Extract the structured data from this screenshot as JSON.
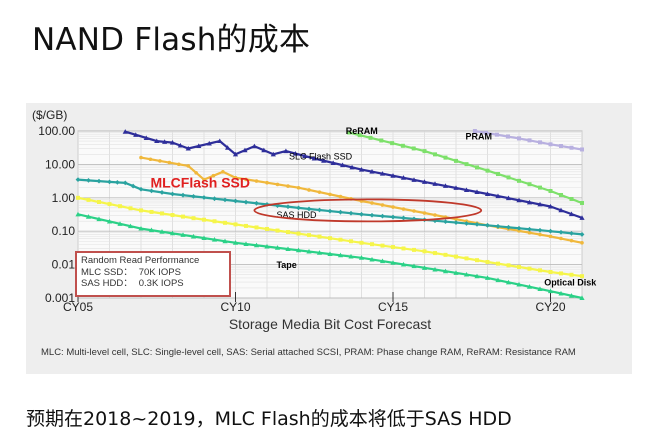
{
  "slide": {
    "title": "NAND Flash的成本",
    "caption": "预期在2018~2019，MLC Flash的成本将低于SAS HDD"
  },
  "figure": {
    "footnote": "MLC: Multi-level cell, SLC: Single-level cell, SAS: Serial attached SCSI, PRAM: Phase change RAM, ReRAM: Resistance RAM",
    "performance_box": {
      "heading": "Random Read Performance",
      "rows": [
        {
          "label": "MLC SSD：",
          "value": "70K IOPS"
        },
        {
          "label": "SAS HDD：",
          "value": "0.3K IOPS"
        }
      ]
    },
    "highlight_color": "#c0392b"
  },
  "chart_data": {
    "type": "line",
    "title": "Storage Media Bit Cost Forecast",
    "ylabel": "($/GB)",
    "xlabel": "",
    "yscale": "log",
    "ylim": [
      0.001,
      100
    ],
    "xlim": [
      2005,
      2021
    ],
    "grid": true,
    "yticks": [
      {
        "value": 100,
        "label": "100.00"
      },
      {
        "value": 10,
        "label": "10.00"
      },
      {
        "value": 1,
        "label": "1.00"
      },
      {
        "value": 0.1,
        "label": "0.10"
      },
      {
        "value": 0.01,
        "label": "0.01"
      },
      {
        "value": 0.001,
        "label": "0.001"
      }
    ],
    "xticks": [
      {
        "value": 2005,
        "label": "CY05"
      },
      {
        "value": 2010,
        "label": "CY10"
      },
      {
        "value": 2015,
        "label": "CY15"
      },
      {
        "value": 2020,
        "label": "CY20"
      }
    ],
    "series": [
      {
        "name": "ReRAM",
        "color": "#7de06a",
        "marker": "square",
        "label_color": "#000000",
        "points": [
          [
            2013.6,
            90
          ],
          [
            2016,
            25
          ],
          [
            2018,
            6.5
          ],
          [
            2020,
            1.6
          ],
          [
            2021,
            0.7
          ]
        ]
      },
      {
        "name": "PRAM",
        "color": "#b8b0e0",
        "marker": "square",
        "label_color": "#000000",
        "points": [
          [
            2017.6,
            100
          ],
          [
            2019,
            60
          ],
          [
            2020,
            40
          ],
          [
            2021,
            28
          ]
        ]
      },
      {
        "name": "SLC Flash SSD",
        "color": "#2e2e9a",
        "marker": "triangle",
        "label_color": "#000000",
        "points": [
          [
            2006.5,
            95
          ],
          [
            2007.5,
            50
          ],
          [
            2008,
            45
          ],
          [
            2008.5,
            30
          ],
          [
            2009.5,
            50
          ],
          [
            2010,
            20
          ],
          [
            2010.6,
            35
          ],
          [
            2011.2,
            20
          ],
          [
            2011.6,
            25
          ],
          [
            2012.5,
            15
          ],
          [
            2014,
            7
          ],
          [
            2016,
            3
          ],
          [
            2018,
            1.3
          ],
          [
            2020,
            0.55
          ],
          [
            2021,
            0.25
          ]
        ]
      },
      {
        "name": "MLCFlash SSD",
        "color": "#f0b83c",
        "marker": "dot",
        "label_color": "#e02020",
        "points": [
          [
            2007,
            16
          ],
          [
            2008.5,
            9
          ],
          [
            2009,
            3.5
          ],
          [
            2009.6,
            6
          ],
          [
            2010,
            4
          ],
          [
            2012,
            2
          ],
          [
            2014,
            0.8
          ],
          [
            2016,
            0.35
          ],
          [
            2018,
            0.15
          ],
          [
            2020,
            0.07
          ],
          [
            2021,
            0.045
          ]
        ]
      },
      {
        "name": "SAS HDD",
        "color": "#2aa3a0",
        "marker": "diamond",
        "label_color": "#000000",
        "points": [
          [
            2005,
            3.5
          ],
          [
            2006,
            3
          ],
          [
            2006.5,
            2.8
          ],
          [
            2007,
            1.8
          ],
          [
            2008,
            1.3
          ],
          [
            2010,
            0.8
          ],
          [
            2012,
            0.5
          ],
          [
            2014,
            0.32
          ],
          [
            2016,
            0.22
          ],
          [
            2018,
            0.15
          ],
          [
            2020,
            0.1
          ],
          [
            2021,
            0.08
          ]
        ]
      },
      {
        "name": "Tape",
        "color": "#f5f54a",
        "marker": "square",
        "label_color": "#000000",
        "points": [
          [
            2005,
            1.0
          ],
          [
            2007,
            0.42
          ],
          [
            2010,
            0.16
          ],
          [
            2014,
            0.045
          ],
          [
            2016,
            0.025
          ],
          [
            2018,
            0.012
          ],
          [
            2020,
            0.006
          ],
          [
            2021,
            0.0045
          ]
        ]
      },
      {
        "name": "Optical Disk",
        "color": "#2bd187",
        "marker": "triangle",
        "label_color": "#000000",
        "points": [
          [
            2005,
            0.32
          ],
          [
            2007,
            0.12
          ],
          [
            2010,
            0.045
          ],
          [
            2014,
            0.016
          ],
          [
            2016,
            0.008
          ],
          [
            2018,
            0.004
          ],
          [
            2020,
            0.0016
          ],
          [
            2021,
            0.001
          ]
        ]
      }
    ],
    "series_labels": [
      {
        "series": "ReRAM",
        "text": "ReRAM",
        "x": 2013.5,
        "y": 80,
        "bold": true,
        "size": 9
      },
      {
        "series": "PRAM",
        "text": "PRAM",
        "x": 2017.3,
        "y": 55,
        "bold": true,
        "size": 9
      },
      {
        "series": "SLC Flash SSD",
        "text": "SLC Flash SSD",
        "x": 2011.7,
        "y": 14,
        "bold": false,
        "size": 9
      },
      {
        "series": "MLCFlash SSD",
        "text": "MLCFlash SSD",
        "x": 2007.3,
        "y": 2.0,
        "bold": true,
        "size": 14
      },
      {
        "series": "SAS HDD",
        "text": "SAS HDD",
        "x": 2011.3,
        "y": 0.25,
        "bold": false,
        "size": 9
      },
      {
        "series": "Tape",
        "text": "Tape",
        "x": 2011.3,
        "y": 0.008,
        "bold": true,
        "size": 9
      },
      {
        "series": "Optical Disk",
        "text": "Optical Disk",
        "x": 2019.8,
        "y": 0.0024,
        "bold": true,
        "size": 9
      }
    ],
    "highlight_ellipse": {
      "cx": 2014.2,
      "cy": 0.42,
      "rx_years": 3.6,
      "ry_decades": 0.33
    }
  }
}
